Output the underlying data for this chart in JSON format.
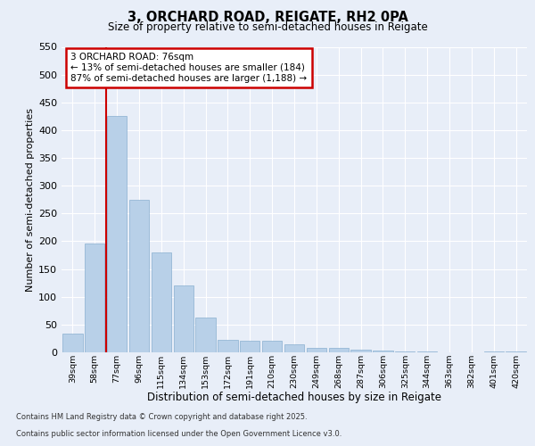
{
  "title_line1": "3, ORCHARD ROAD, REIGATE, RH2 0PA",
  "title_line2": "Size of property relative to semi-detached houses in Reigate",
  "xlabel": "Distribution of semi-detached houses by size in Reigate",
  "ylabel": "Number of semi-detached properties",
  "categories": [
    "39sqm",
    "58sqm",
    "77sqm",
    "96sqm",
    "115sqm",
    "134sqm",
    "153sqm",
    "172sqm",
    "191sqm",
    "210sqm",
    "230sqm",
    "249sqm",
    "268sqm",
    "287sqm",
    "306sqm",
    "325sqm",
    "344sqm",
    "363sqm",
    "382sqm",
    "401sqm",
    "420sqm"
  ],
  "values": [
    33,
    196,
    425,
    275,
    180,
    121,
    62,
    22,
    21,
    21,
    15,
    8,
    8,
    5,
    3,
    1,
    1,
    0,
    0,
    1,
    1
  ],
  "bar_color": "#b8d0e8",
  "bar_edge_color": "#8ab0d0",
  "vline_color": "#cc0000",
  "annotation_title": "3 ORCHARD ROAD: 76sqm",
  "annotation_line2": "← 13% of semi-detached houses are smaller (184)",
  "annotation_line3": "87% of semi-detached houses are larger (1,188) →",
  "annotation_box_color": "#cc0000",
  "ylim_max": 550,
  "footer_line1": "Contains HM Land Registry data © Crown copyright and database right 2025.",
  "footer_line2": "Contains public sector information licensed under the Open Government Licence v3.0.",
  "bg_color": "#e8eef8",
  "plot_bg_color": "#e8eef8",
  "grid_color": "#ffffff"
}
